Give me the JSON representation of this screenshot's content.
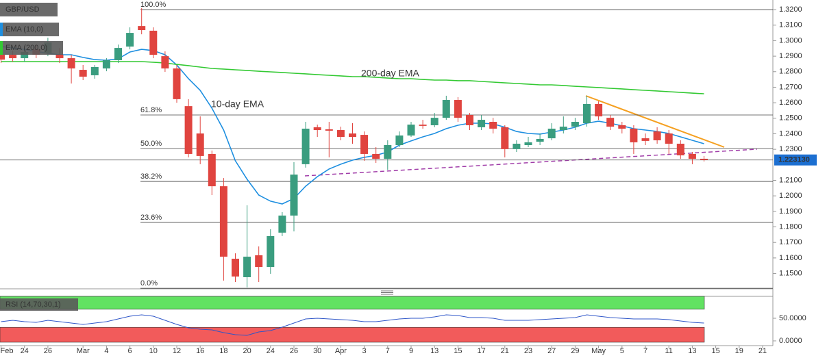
{
  "chart_data": [
    {
      "type": "candlestick",
      "title": "GBP/USD",
      "categories": [
        "Feb",
        null,
        "24",
        null,
        "26",
        null,
        null,
        "Mar",
        null,
        "4",
        null,
        "6",
        null,
        "10",
        null,
        "12",
        null,
        "16",
        null,
        "18",
        null,
        "20",
        null,
        "24",
        null,
        "26",
        null,
        "30",
        null,
        "Apr",
        null,
        "3",
        null,
        "7",
        null,
        "9",
        null,
        "13",
        null,
        "15",
        null,
        "17",
        null,
        "21",
        null,
        "23",
        null,
        "27",
        null,
        "29",
        null,
        "May",
        null,
        "5",
        null,
        "7",
        null,
        "11",
        null,
        "13",
        null,
        "15",
        null,
        "19",
        null,
        "21"
      ],
      "open": [
        1.2909,
        1.2909,
        1.2887,
        1.2944,
        1.2918,
        1.2909,
        1.2887,
        1.2812,
        1.2777,
        1.2821,
        1.2874,
        1.2962,
        1.3094,
        1.3064,
        1.29,
        1.2821,
        1.2578,
        1.2402,
        1.227,
        1.2062,
        1.1595,
        1.1476,
        1.1617,
        1.1542,
        1.1763,
        1.1873,
        1.2204,
        1.2442,
        1.2429,
        1.2424,
        1.2402,
        1.2393,
        1.227,
        1.2239,
        1.2327,
        1.2389,
        1.2459,
        1.2455,
        1.2503,
        1.2618,
        1.2521,
        1.2442,
        1.2477,
        1.2442,
        1.2301,
        1.2327,
        1.2349,
        1.2371,
        1.2424,
        1.2446,
        1.2468,
        1.2592,
        1.2503,
        1.2455,
        1.2433,
        1.2371,
        1.2415,
        1.2402,
        1.2336,
        1.227,
        1.2239,
        null,
        null,
        null,
        null,
        null
      ],
      "high": [
        1.2953,
        1.2936,
        1.2953,
        1.2975,
        1.3019,
        1.2953,
        1.2909,
        1.2843,
        1.2843,
        1.2887,
        1.2975,
        1.3086,
        1.3209,
        1.3086,
        1.2931,
        1.2843,
        1.2623,
        1.2512,
        1.2292,
        1.2115,
        1.163,
        1.1939,
        1.1674,
        1.1785,
        1.1895,
        1.2217,
        1.2477,
        1.2459,
        1.2477,
        1.2446,
        1.2468,
        1.2415,
        1.2314,
        1.2358,
        1.2415,
        1.2477,
        1.249,
        1.2534,
        1.2645,
        1.2636,
        1.2534,
        1.2521,
        1.2503,
        1.2455,
        1.2358,
        1.238,
        1.2402,
        1.2468,
        1.2512,
        1.2503,
        1.2645,
        1.2609,
        1.2521,
        1.2477,
        1.2455,
        1.2402,
        1.2442,
        1.2424,
        1.2358,
        1.2283,
        1.2257,
        null,
        null,
        null,
        null,
        null
      ],
      "low": [
        1.2856,
        1.2865,
        1.2865,
        1.2887,
        1.29,
        1.2856,
        1.2724,
        1.2746,
        1.2755,
        1.2803,
        1.2856,
        1.2944,
        1.3041,
        1.2887,
        1.2799,
        1.26,
        1.2248,
        1.2204,
        1.2005,
        1.1454,
        1.1445,
        1.141,
        1.1445,
        1.1498,
        1.1741,
        1.1771,
        1.2182,
        1.238,
        1.2248,
        1.2358,
        1.2336,
        1.2226,
        1.2212,
        1.2168,
        1.2314,
        1.238,
        1.2433,
        1.2442,
        1.249,
        1.2477,
        1.2424,
        1.2424,
        1.2402,
        1.2248,
        1.2283,
        1.2314,
        1.2327,
        1.2358,
        1.2402,
        1.2424,
        1.2446,
        1.249,
        1.2424,
        1.2402,
        1.227,
        1.2327,
        1.2336,
        1.227,
        1.2239,
        1.2204,
        1.2221,
        null,
        null,
        null,
        null,
        null
      ],
      "close": [
        1.2878,
        1.2887,
        1.2927,
        1.2909,
        1.2988,
        1.2887,
        1.2821,
        1.2768,
        1.283,
        1.2874,
        1.2953,
        1.305,
        1.3068,
        1.2909,
        1.2821,
        1.2623,
        1.227,
        1.2257,
        1.2062,
        1.1608,
        1.148,
        1.1608,
        1.1542,
        1.1741,
        1.1873,
        1.2137,
        1.2433,
        1.2424,
        1.242,
        1.238,
        1.238,
        1.227,
        1.2239,
        1.2327,
        1.2389,
        1.2459,
        1.2451,
        1.2503,
        1.2618,
        1.2503,
        1.2455,
        1.249,
        1.2433,
        1.2301,
        1.2336,
        1.2345,
        1.2367,
        1.2433,
        1.2446,
        1.2477,
        1.2592,
        1.2512,
        1.2446,
        1.2433,
        1.2345,
        1.2354,
        1.2358,
        1.2336,
        1.2261,
        1.2239,
        1.22313,
        null,
        null,
        null,
        null,
        null
      ],
      "up_color": "#3a9d7f",
      "down_color": "#e0443f",
      "series": [
        {
          "name": "EMA (10,0)",
          "color": "#1e8fe0",
          "values": [
            1.2962,
            1.2953,
            1.2944,
            1.2931,
            1.2918,
            1.2909,
            1.2909,
            1.2892,
            1.2878,
            1.2874,
            1.2883,
            1.2927,
            1.2944,
            1.2936,
            1.2909,
            1.2843,
            1.2755,
            1.268,
            1.2565,
            1.2424,
            1.2226,
            1.2107,
            1.2005,
            1.1966,
            1.1948,
            1.1983,
            1.2062,
            1.2124,
            1.2173,
            1.2204,
            1.223,
            1.2248,
            1.2261,
            1.2283,
            1.2327,
            1.2354,
            1.238,
            1.2402,
            1.2433,
            1.2455,
            1.2468,
            1.2468,
            1.2464,
            1.2442,
            1.2415,
            1.2402,
            1.2398,
            1.2411,
            1.2424,
            1.2442,
            1.2468,
            1.2481,
            1.2468,
            1.2451,
            1.2433,
            1.2424,
            1.2415,
            1.2402,
            1.238,
            1.2358,
            1.2336,
            null,
            null,
            null,
            null,
            null
          ]
        },
        {
          "name": "EMA (200,0)",
          "color": "#33c933",
          "values": [
            1.2865,
            1.2865,
            1.2865,
            1.2865,
            1.2865,
            1.2865,
            1.2865,
            1.2865,
            1.2865,
            1.2865,
            1.2865,
            1.2865,
            1.2865,
            1.2861,
            1.2856,
            1.2847,
            1.2839,
            1.283,
            1.2821,
            1.2817,
            1.2812,
            1.2808,
            1.2803,
            1.2799,
            1.2795,
            1.279,
            1.2786,
            1.2781,
            1.2777,
            1.2773,
            1.2768,
            1.2768,
            1.2764,
            1.2759,
            1.2755,
            1.2755,
            1.275,
            1.2746,
            1.2746,
            1.2742,
            1.2742,
            1.2737,
            1.2733,
            1.2728,
            1.2724,
            1.272,
            1.2715,
            1.2715,
            1.2711,
            1.2706,
            1.2702,
            1.2698,
            1.2693,
            1.2689,
            1.2684,
            1.268,
            1.2676,
            1.2671,
            1.2667,
            1.2662,
            1.2658,
            null,
            null,
            null,
            null,
            null
          ]
        }
      ],
      "annotations": [
        "10-day EMA",
        "200-day EMA"
      ],
      "fib_levels": [
        {
          "value": 1.32,
          "label": "100.0%"
        },
        {
          "value": 1.2521,
          "label": "61.8%"
        },
        {
          "value": 1.2305,
          "label": "50.0%"
        },
        {
          "value": 1.2093,
          "label": "38.2%"
        },
        {
          "value": 1.1829,
          "label": "23.6%"
        },
        {
          "value": 1.1405,
          "label": "0.0%"
        }
      ],
      "last_price": {
        "value": 1.22313,
        "label": "1.223130"
      },
      "ylim": [
        1.1401,
        1.3262
      ],
      "yticks": [
        {
          "value": 1.32,
          "label": "1.3200"
        },
        {
          "value": 1.31,
          "label": "1.3100"
        },
        {
          "value": 1.3,
          "label": "1.3000"
        },
        {
          "value": 1.29,
          "label": "1.2900"
        },
        {
          "value": 1.28,
          "label": "1.2800"
        },
        {
          "value": 1.27,
          "label": "1.2700"
        },
        {
          "value": 1.26,
          "label": "1.2600"
        },
        {
          "value": 1.25,
          "label": "1.2500"
        },
        {
          "value": 1.24,
          "label": "1.2400"
        },
        {
          "value": 1.23,
          "label": "1.2300"
        },
        {
          "value": 1.21,
          "label": "1.2100"
        },
        {
          "value": 1.2,
          "label": "1.2000"
        },
        {
          "value": 1.19,
          "label": "1.1900"
        },
        {
          "value": 1.18,
          "label": "1.1800"
        },
        {
          "value": 1.17,
          "label": "1.1700"
        },
        {
          "value": 1.16,
          "label": "1.1600"
        },
        {
          "value": 1.15,
          "label": "1.1500"
        }
      ],
      "grid": false
    },
    {
      "type": "line",
      "title": "RSI (14,70,30,1)",
      "color": "#2d55c8",
      "values": [
        42.4,
        45.5,
        42.4,
        40.9,
        45.5,
        42.4,
        39.4,
        36.4,
        39.4,
        42.4,
        48.5,
        54.5,
        57.6,
        54.5,
        45.5,
        36.4,
        28.8,
        25.8,
        24.2,
        18.2,
        13.6,
        12.1,
        19.7,
        22.7,
        30.3,
        39.4,
        48.5,
        50.0,
        48.5,
        47.0,
        45.5,
        42.4,
        42.4,
        45.5,
        48.5,
        50.0,
        50.0,
        53.0,
        57.6,
        56.1,
        51.5,
        51.5,
        50.0,
        45.5,
        45.5,
        45.5,
        47.0,
        48.5,
        50.0,
        51.5,
        57.6,
        54.5,
        51.5,
        50.0,
        48.5,
        48.5,
        48.5,
        47.0,
        43.9,
        40.9,
        39.4,
        null,
        null,
        null,
        null,
        null
      ],
      "upper_band": 70,
      "lower_band": 30,
      "upper_color": "#62e262",
      "lower_color": "#f25b5b",
      "ylim": [
        -3,
        98.5
      ],
      "yticks": [
        {
          "value": 50,
          "label": "50.0000"
        },
        {
          "value": 0,
          "label": "0.0000"
        }
      ]
    }
  ]
}
